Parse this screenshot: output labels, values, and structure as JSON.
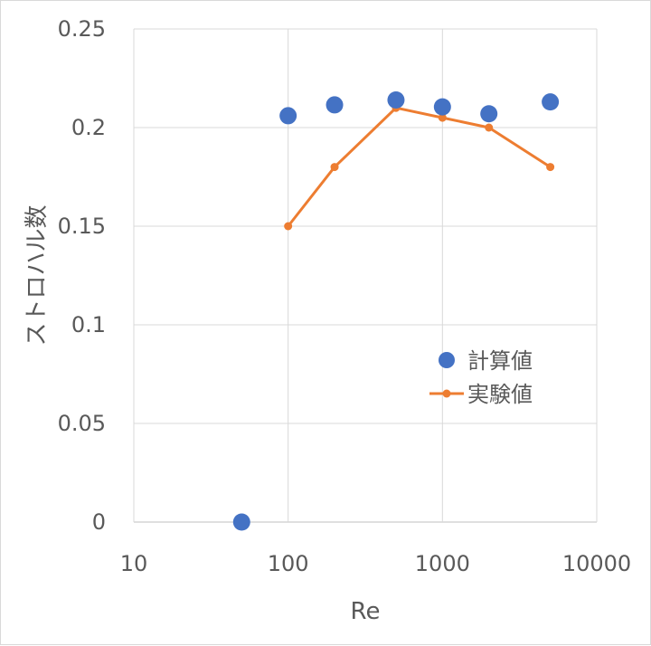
{
  "chart_data": {
    "type": "scatter",
    "title": "",
    "xlabel": "Re",
    "ylabel": "ストロハル数",
    "xscale": "log",
    "xlim": [
      10,
      10000
    ],
    "ylim": [
      0,
      0.25
    ],
    "xticks": [
      10,
      100,
      1000,
      10000
    ],
    "xtick_labels": [
      "10",
      "100",
      "1000",
      "10000"
    ],
    "yticks": [
      0,
      0.05,
      0.1,
      0.15,
      0.2,
      0.25
    ],
    "ytick_labels": [
      "0",
      "0.05",
      "0.1",
      "0.15",
      "0.2",
      "0.25"
    ],
    "grid": true,
    "legend_position": "right-middle",
    "series": [
      {
        "name": "計算値",
        "style": "markers",
        "color": "#4472C4",
        "x": [
          50,
          100,
          200,
          500,
          1000,
          2000,
          5000
        ],
        "y": [
          0,
          0.206,
          0.2115,
          0.214,
          0.2105,
          0.207,
          0.213
        ]
      },
      {
        "name": "実験値",
        "style": "line-markers",
        "color": "#ED7D31",
        "x": [
          100,
          200,
          500,
          1000,
          2000,
          5000
        ],
        "y": [
          0.15,
          0.18,
          0.21,
          0.205,
          0.2,
          0.18
        ]
      }
    ]
  }
}
